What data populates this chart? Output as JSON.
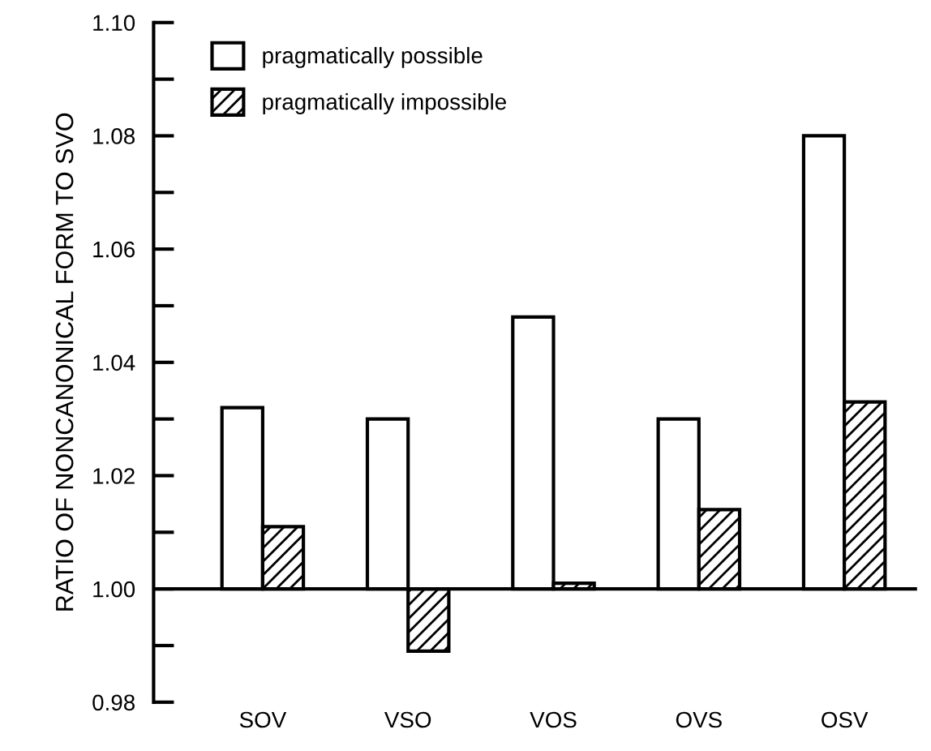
{
  "chart_data": {
    "type": "bar",
    "ylabel": "RATIO OF NONCANONICAL FORM TO SVO",
    "categories": [
      "SOV",
      "VSO",
      "VOS",
      "OVS",
      "OSV"
    ],
    "series": [
      {
        "name": "pragmatically possible",
        "color": "#000000",
        "base": [
          1.0,
          1.0,
          1.0,
          1.0,
          1.0
        ],
        "values": [
          0.032,
          0.03,
          0.048,
          0.03,
          0.08
        ]
      },
      {
        "name": "pragmatically impossible",
        "color": "#000000",
        "base": [
          1.0,
          1.0,
          1.0,
          1.0,
          1.0
        ],
        "values": [
          0.011,
          -0.011,
          0.001,
          0.014,
          0.033
        ]
      }
    ],
    "ylim": [
      0.98,
      1.1
    ],
    "yticks": [
      0.98,
      {
        "value": 0.99,
        "label": null
      },
      "1.00",
      {
        "value": 1.01,
        "label": null
      },
      1.02,
      {
        "value": 1.03,
        "label": null
      },
      1.04,
      {
        "value": 1.05,
        "label": null
      },
      1.06,
      {
        "value": 1.07,
        "label": null
      },
      1.08,
      {
        "value": 1.09,
        "label": null
      },
      "1.10"
    ],
    "ref_lines": [
      {
        "axis": "y",
        "value": 1.0,
        "color": "#000000"
      }
    ],
    "legend": "top left",
    "grid": false
  }
}
